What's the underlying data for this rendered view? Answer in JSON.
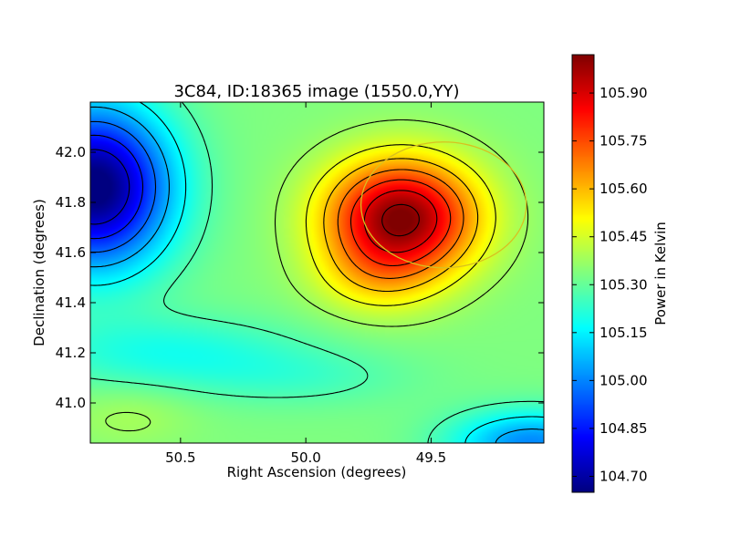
{
  "chart_data": {
    "type": "heatmap",
    "title": "3C84, ID:18365 image (1550.0,YY)",
    "xlabel": "Right Ascension (degrees)",
    "ylabel": "Declination (degrees)",
    "colorbar_label": "Power in Kelvin",
    "xlim": [
      50.86,
      49.05
    ],
    "ylim": [
      40.84,
      42.2
    ],
    "x_axis_inverted": true,
    "x_ticks": [
      50.5,
      50.0,
      49.5
    ],
    "x_tick_labels": [
      "50.5",
      "50.0",
      "49.5"
    ],
    "y_ticks": [
      41.0,
      41.2,
      41.4,
      41.6,
      41.8,
      42.0
    ],
    "y_tick_labels": [
      "41.0",
      "41.2",
      "41.4",
      "41.6",
      "41.8",
      "42.0"
    ],
    "colorbar_range": [
      104.65,
      106.02
    ],
    "colorbar_ticks": [
      104.7,
      104.85,
      105.0,
      105.15,
      105.3,
      105.45,
      105.6,
      105.75,
      105.9
    ],
    "colorbar_tick_labels": [
      "104.70",
      "104.85",
      "105.00",
      "105.15",
      "105.30",
      "105.45",
      "105.60",
      "105.75",
      "105.90"
    ],
    "colormap": "jet",
    "contours": "black",
    "features": [
      {
        "kind": "peak",
        "ra": 49.6,
        "dec": 41.74,
        "value": 106.0
      },
      {
        "kind": "trough",
        "ra": 50.8,
        "dec": 41.83,
        "value": 104.66
      },
      {
        "kind": "trough",
        "ra": 49.15,
        "dec": 40.84,
        "value": 104.95
      }
    ],
    "overlay_circle": {
      "ra": 49.45,
      "dec": 41.79,
      "radius_deg": 0.33,
      "color": "#d8c020"
    }
  }
}
